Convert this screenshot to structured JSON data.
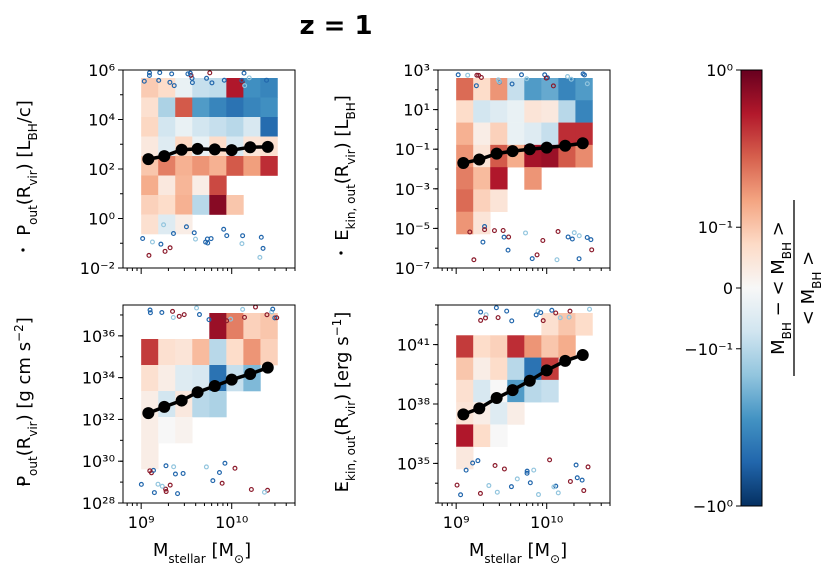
{
  "title": "z = 1",
  "colors": {
    "cmap": [
      "#053061",
      "#2166ac",
      "#4393c3",
      "#92c5de",
      "#d1e5f0",
      "#f7f7f7",
      "#fddbc7",
      "#f4a582",
      "#d6604d",
      "#b2182b",
      "#67001f"
    ],
    "median_line": "#000000"
  },
  "colorbar": {
    "label": "(M_BH − <M_BH>) / <M_BH>",
    "label_numerator": "M_BH − < M_BH >",
    "label_denominator": "< M_BH >",
    "ticks": [
      {
        "value": 1,
        "label": "10⁰"
      },
      {
        "value": 0.1,
        "label": "10⁻¹"
      },
      {
        "value": 0,
        "label": "0"
      },
      {
        "value": -0.1,
        "label": "−10⁻¹"
      },
      {
        "value": -1,
        "label": "−10⁰"
      }
    ],
    "scale": "symlog",
    "range": [
      -1,
      1
    ]
  },
  "chart_data": [
    {
      "id": "pdot_top",
      "type": "heatmap",
      "ylabel": "Ṗ_out(R_vir) [L_BH/c]",
      "xlabel": "",
      "xscale": "log",
      "yscale": "log",
      "xlim": [
        630000000.0,
        50000000000.0
      ],
      "ylim": [
        0.01,
        1000000
      ],
      "xticks": [
        {
          "value": 1000000000,
          "label": ""
        },
        {
          "value": 10000000000,
          "label": ""
        }
      ],
      "yticks": [
        {
          "value": 0.01,
          "label": "10⁻²"
        },
        {
          "value": 1,
          "label": "10⁰"
        },
        {
          "value": 100,
          "label": "10²"
        },
        {
          "value": 10000,
          "label": "10⁴"
        },
        {
          "value": 1000000,
          "label": "10⁶"
        }
      ],
      "cells": [
        [
          0.09,
          0.06,
          -0.02,
          -0.08,
          -0.09,
          0.6,
          -0.35,
          -0.4
        ],
        [
          0.05,
          -0.12,
          0.35,
          -0.3,
          -0.4,
          -0.5,
          -0.4,
          -0.35
        ],
        [
          0.07,
          -0.06,
          -0.02,
          -0.06,
          -0.08,
          -0.1,
          -0.05,
          -0.55
        ],
        [
          0.03,
          -0.04,
          0.07,
          -0.02,
          0.06,
          -0.05,
          0.04,
          0.05
        ],
        [
          0.1,
          0.25,
          0.14,
          0.2,
          0.14,
          0.35,
          0.18,
          0.5
        ],
        [
          0.15,
          0.03,
          0.13,
          0.02,
          0.4,
          null,
          null,
          null
        ],
        [
          0.08,
          0.06,
          0.14,
          -0.1,
          0.8,
          0.1,
          null,
          null
        ],
        [
          0.05,
          -0.04,
          0.02,
          null,
          null,
          null,
          null,
          null
        ]
      ],
      "median": {
        "x": [
          1200000000,
          1800000000,
          2800000000,
          4200000000,
          6500000000,
          10000000000,
          16000000000,
          25000000000
        ],
        "y": [
          250,
          330,
          600,
          650,
          620,
          580,
          760,
          780
        ]
      }
    },
    {
      "id": "ekin_top",
      "type": "heatmap",
      "ylabel": "Ė_kin, out(R_vir) [L_BH]",
      "xlabel": "",
      "xscale": "log",
      "yscale": "log",
      "xlim": [
        630000000.0,
        50000000000.0
      ],
      "ylim": [
        1e-07,
        1000
      ],
      "xticks": [
        {
          "value": 1000000000,
          "label": ""
        },
        {
          "value": 10000000000,
          "label": ""
        }
      ],
      "yticks": [
        {
          "value": 1e-07,
          "label": "10⁻⁷"
        },
        {
          "value": 1e-05,
          "label": "10⁻⁵"
        },
        {
          "value": 0.001,
          "label": "10⁻³"
        },
        {
          "value": 0.1,
          "label": "10⁻¹"
        },
        {
          "value": 10,
          "label": "10¹"
        },
        {
          "value": 1000,
          "label": "10³"
        }
      ],
      "cells": [
        [
          0.3,
          0.06,
          0.2,
          -0.08,
          -0.3,
          -0.25,
          -0.4,
          -0.3
        ],
        [
          0.06,
          -0.06,
          -0.04,
          -0.02,
          0.04,
          0.03,
          -0.1,
          -0.4
        ],
        [
          0.14,
          0.02,
          0.08,
          -0.02,
          -0.04,
          -0.08,
          0.5,
          0.5
        ],
        [
          0.2,
          0.04,
          0.35,
          0.15,
          0.65,
          0.7,
          0.35,
          0.22
        ],
        [
          0.25,
          0.12,
          0.6,
          null,
          0.2,
          null,
          null,
          null
        ],
        [
          0.3,
          0.08,
          0.04,
          null,
          null,
          null,
          null,
          null
        ],
        [
          0.2,
          0.04,
          null,
          null,
          null,
          null,
          null,
          null
        ]
      ],
      "median": {
        "x": [
          1200000000,
          1800000000,
          2800000000,
          4200000000,
          6500000000,
          10000000000,
          16000000000,
          25000000000
        ],
        "y": [
          0.02,
          0.03,
          0.06,
          0.08,
          0.1,
          0.12,
          0.15,
          0.2
        ]
      }
    },
    {
      "id": "pdot_bottom",
      "type": "heatmap",
      "ylabel": "Ṗ_out(R_vir) [g cm s⁻²]",
      "xlabel": "M_stellar [M_⊙]",
      "xscale": "log",
      "yscale": "log",
      "xlim": [
        630000000.0,
        50000000000.0
      ],
      "ylim": [
        1e+28,
        3e+37
      ],
      "xticks": [
        {
          "value": 1000000000,
          "label": "10⁹"
        },
        {
          "value": 10000000000,
          "label": "10¹⁰"
        }
      ],
      "yticks": [
        {
          "value": 1e+28,
          "label": "10²⁸"
        },
        {
          "value": 1e+30,
          "label": "10³⁰"
        },
        {
          "value": 1e+32,
          "label": "10³²"
        },
        {
          "value": 1e+34,
          "label": "10³⁴"
        },
        {
          "value": 1e+36,
          "label": "10³⁶"
        }
      ],
      "cells": [
        [
          null,
          null,
          null,
          null,
          0.7,
          0.25,
          0.08,
          0.1
        ],
        [
          0.45,
          0.05,
          0.04,
          0.12,
          -0.1,
          0.06,
          0.2,
          0.08
        ],
        [
          0.05,
          0.02,
          -0.04,
          -0.05,
          -0.5,
          -0.08,
          -0.2,
          null
        ],
        [
          0.02,
          -0.06,
          0.03,
          -0.1,
          -0.12,
          null,
          null,
          null
        ],
        [
          0.02,
          0.0,
          0.01,
          null,
          null,
          null,
          null,
          null
        ],
        [
          0.02,
          null,
          null,
          null,
          null,
          null,
          null,
          null
        ]
      ],
      "median": {
        "x": [
          1200000000,
          1800000000,
          2800000000,
          4200000000,
          6500000000,
          10000000000,
          16000000000,
          25000000000
        ],
        "y": [
          2e+32,
          4e+32,
          8e+32,
          2e+33,
          4e+33,
          8e+33,
          1.5e+34,
          3e+34
        ]
      }
    },
    {
      "id": "ekin_bottom",
      "type": "heatmap",
      "ylabel": "Ė_kin, out(R_vir) [erg s⁻¹]",
      "xlabel": "M_stellar [M_⊙]",
      "xscale": "log",
      "yscale": "log",
      "xlim": [
        630000000.0,
        50000000000.0
      ],
      "ylim": [
        1e+33,
        1e+43
      ],
      "xticks": [
        {
          "value": 1000000000,
          "label": "10⁹"
        },
        {
          "value": 10000000000,
          "label": "10¹⁰"
        }
      ],
      "yticks": [
        {
          "value": 1e+35,
          "label": "10³⁵"
        },
        {
          "value": 1e+38,
          "label": "10³⁸"
        },
        {
          "value": 1e+41,
          "label": "10⁴¹"
        }
      ],
      "cells": [
        [
          null,
          null,
          null,
          null,
          null,
          0.05,
          0.1,
          0.06
        ],
        [
          0.45,
          0.06,
          0.08,
          0.5,
          0.2,
          0.1,
          0.15,
          null
        ],
        [
          0.1,
          0.02,
          0.06,
          -0.1,
          -0.5,
          0.45,
          null,
          null
        ],
        [
          0.05,
          -0.05,
          0.0,
          -0.3,
          -0.1,
          -0.08,
          null,
          null
        ],
        [
          0.04,
          0.02,
          -0.04,
          0.02,
          null,
          null,
          null,
          null
        ],
        [
          0.6,
          0.06,
          0.0,
          null,
          null,
          null,
          null,
          null
        ],
        [
          0.03,
          null,
          null,
          null,
          null,
          null,
          null,
          null
        ]
      ],
      "median": {
        "x": [
          1200000000,
          1800000000,
          2800000000,
          4200000000,
          6500000000,
          10000000000,
          16000000000,
          25000000000
        ],
        "y": [
          3e+37,
          6e+37,
          2e+38,
          5e+38,
          1.5e+39,
          5e+39,
          1.5e+40,
          3e+40
        ]
      }
    }
  ]
}
